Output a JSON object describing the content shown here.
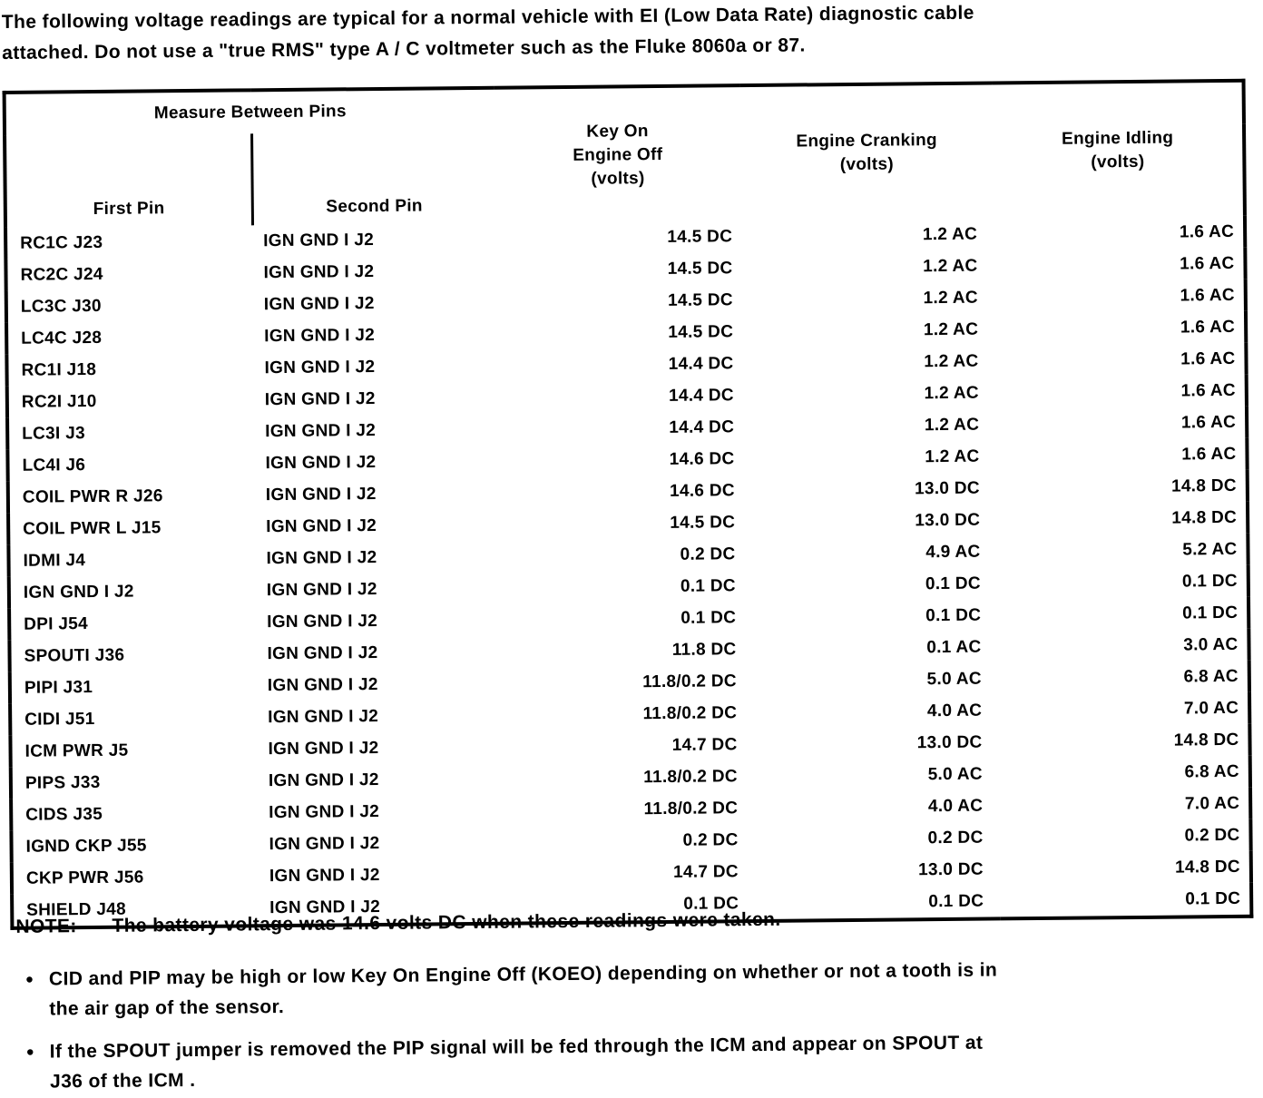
{
  "intro_text": "The following voltage readings are typical for a normal vehicle with EI (Low Data Rate) diagnostic cable\nattached. Do not use a \"true RMS\" type A / C voltmeter such as the Fluke 8060a or 87.",
  "table": {
    "group_header": "Measure Between Pins",
    "headers": {
      "first_pin": "First Pin",
      "second_pin": "Second Pin",
      "koeo": "Key On\nEngine Off\n(volts)",
      "cranking": "Engine Cranking\n(volts)",
      "idling": "Engine Idling\n(volts)"
    },
    "rows": [
      {
        "first_pin": "RC1C J23",
        "second_pin": "IGN GND I J2",
        "koeo": "14.5 DC",
        "cranking": "1.2 AC",
        "idling": "1.6 AC"
      },
      {
        "first_pin": "RC2C J24",
        "second_pin": "IGN GND I J2",
        "koeo": "14.5 DC",
        "cranking": "1.2 AC",
        "idling": "1.6 AC"
      },
      {
        "first_pin": "LC3C J30",
        "second_pin": "IGN GND I J2",
        "koeo": "14.5 DC",
        "cranking": "1.2 AC",
        "idling": "1.6 AC"
      },
      {
        "first_pin": "LC4C J28",
        "second_pin": "IGN GND I J2",
        "koeo": "14.5 DC",
        "cranking": "1.2 AC",
        "idling": "1.6 AC"
      },
      {
        "first_pin": "RC1I J18",
        "second_pin": "IGN GND I J2",
        "koeo": "14.4 DC",
        "cranking": "1.2 AC",
        "idling": "1.6 AC"
      },
      {
        "first_pin": "RC2I J10",
        "second_pin": "IGN GND I J2",
        "koeo": "14.4 DC",
        "cranking": "1.2 AC",
        "idling": "1.6 AC"
      },
      {
        "first_pin": "LC3I J3",
        "second_pin": "IGN GND I J2",
        "koeo": "14.4 DC",
        "cranking": "1.2 AC",
        "idling": "1.6 AC"
      },
      {
        "first_pin": "LC4I J6",
        "second_pin": "IGN GND I J2",
        "koeo": "14.6 DC",
        "cranking": "1.2 AC",
        "idling": "1.6 AC"
      },
      {
        "first_pin": "COIL PWR R J26",
        "second_pin": "IGN GND I J2",
        "koeo": "14.6 DC",
        "cranking": "13.0 DC",
        "idling": "14.8 DC"
      },
      {
        "first_pin": "COIL PWR L J15",
        "second_pin": "IGN GND I J2",
        "koeo": "14.5 DC",
        "cranking": "13.0 DC",
        "idling": "14.8 DC"
      },
      {
        "first_pin": "IDMI J4",
        "second_pin": "IGN GND I J2",
        "koeo": "0.2 DC",
        "cranking": "4.9 AC",
        "idling": "5.2 AC"
      },
      {
        "first_pin": "IGN GND I J2",
        "second_pin": "IGN GND I J2",
        "koeo": "0.1 DC",
        "cranking": "0.1 DC",
        "idling": "0.1 DC"
      },
      {
        "first_pin": "DPI J54",
        "second_pin": "IGN GND I J2",
        "koeo": "0.1 DC",
        "cranking": "0.1 DC",
        "idling": "0.1 DC"
      },
      {
        "first_pin": "SPOUTI J36",
        "second_pin": "IGN GND I J2",
        "koeo": "11.8 DC",
        "cranking": "0.1 AC",
        "idling": "3.0 AC"
      },
      {
        "first_pin": "PIPI J31",
        "second_pin": "IGN GND I J2",
        "koeo": "11.8/0.2 DC",
        "cranking": "5.0 AC",
        "idling": "6.8 AC"
      },
      {
        "first_pin": "CIDI J51",
        "second_pin": "IGN GND I J2",
        "koeo": "11.8/0.2 DC",
        "cranking": "4.0 AC",
        "idling": "7.0 AC"
      },
      {
        "first_pin": "ICM PWR J5",
        "second_pin": "IGN GND I J2",
        "koeo": "14.7 DC",
        "cranking": "13.0 DC",
        "idling": "14.8 DC"
      },
      {
        "first_pin": "PIPS J33",
        "second_pin": "IGN GND I J2",
        "koeo": "11.8/0.2 DC",
        "cranking": "5.0 AC",
        "idling": "6.8 AC"
      },
      {
        "first_pin": "CIDS J35",
        "second_pin": "IGN GND I J2",
        "koeo": "11.8/0.2 DC",
        "cranking": "4.0 AC",
        "idling": "7.0 AC"
      },
      {
        "first_pin": "IGND CKP J55",
        "second_pin": "IGN GND I J2",
        "koeo": "0.2 DC",
        "cranking": "0.2 DC",
        "idling": "0.2 DC"
      },
      {
        "first_pin": "CKP PWR J56",
        "second_pin": "IGN GND I J2",
        "koeo": "14.7 DC",
        "cranking": "13.0 DC",
        "idling": "14.8 DC"
      },
      {
        "first_pin": "SHIELD J48",
        "second_pin": "IGN GND I J2",
        "koeo": "0.1 DC",
        "cranking": "0.1 DC",
        "idling": "0.1 DC"
      }
    ]
  },
  "note": {
    "label": "NOTE:",
    "text": "The battery voltage was 14.6 volts DC when these readings were taken."
  },
  "bullets": [
    "CID and PIP may be high or low Key On Engine Off (KOEO) depending on whether or not a tooth is in\nthe air gap of the sensor.",
    "If the SPOUT jumper is removed the PIP signal will be fed through the ICM and appear on SPOUT at\nJ36 of the ICM ."
  ],
  "bullet_glyph": "●"
}
